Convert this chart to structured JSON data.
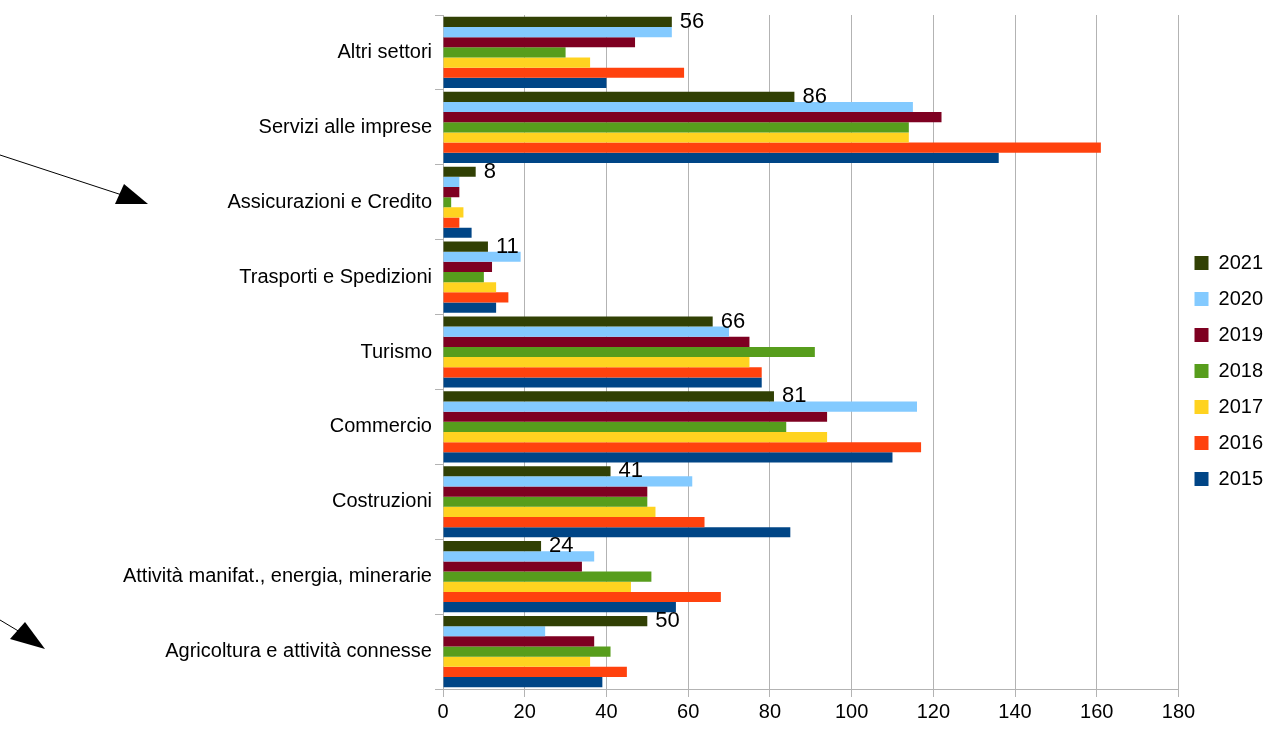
{
  "chart_data": {
    "type": "bar",
    "orientation": "horizontal",
    "categories": [
      "Altri settori",
      "Servizi alle imprese",
      "Assicurazioni e Credito",
      "Trasporti e Spedizioni",
      "Turismo",
      "Commercio",
      "Costruzioni",
      "Attività manifat., energia, minerarie",
      "Agricoltura e attività connesse"
    ],
    "series": [
      {
        "name": "2021",
        "color": "#314004",
        "values": [
          56,
          86,
          8,
          11,
          66,
          81,
          41,
          24,
          50
        ],
        "value_labels": [
          "56",
          "86",
          "8",
          "11",
          "66",
          "81",
          "41",
          "24",
          "50"
        ]
      },
      {
        "name": "2020",
        "color": "#83caff",
        "values": [
          56,
          115,
          4,
          19,
          70,
          116,
          61,
          37,
          25
        ]
      },
      {
        "name": "2019",
        "color": "#7e0021",
        "values": [
          47,
          122,
          4,
          12,
          75,
          94,
          50,
          34,
          37
        ]
      },
      {
        "name": "2018",
        "color": "#579d1c",
        "values": [
          30,
          114,
          2,
          10,
          91,
          84,
          50,
          51,
          41
        ]
      },
      {
        "name": "2017",
        "color": "#ffd320",
        "values": [
          36,
          114,
          5,
          13,
          75,
          94,
          52,
          46,
          36
        ]
      },
      {
        "name": "2016",
        "color": "#ff420e",
        "values": [
          59,
          161,
          4,
          16,
          78,
          117,
          64,
          68,
          45
        ]
      },
      {
        "name": "2015",
        "color": "#004586",
        "values": [
          40,
          136,
          7,
          13,
          78,
          110,
          85,
          57,
          39
        ]
      }
    ],
    "xlim": [
      0,
      180
    ],
    "xticks": [
      0,
      20,
      40,
      60,
      80,
      100,
      120,
      140,
      160,
      180
    ],
    "grid": "x",
    "legend": "right"
  }
}
